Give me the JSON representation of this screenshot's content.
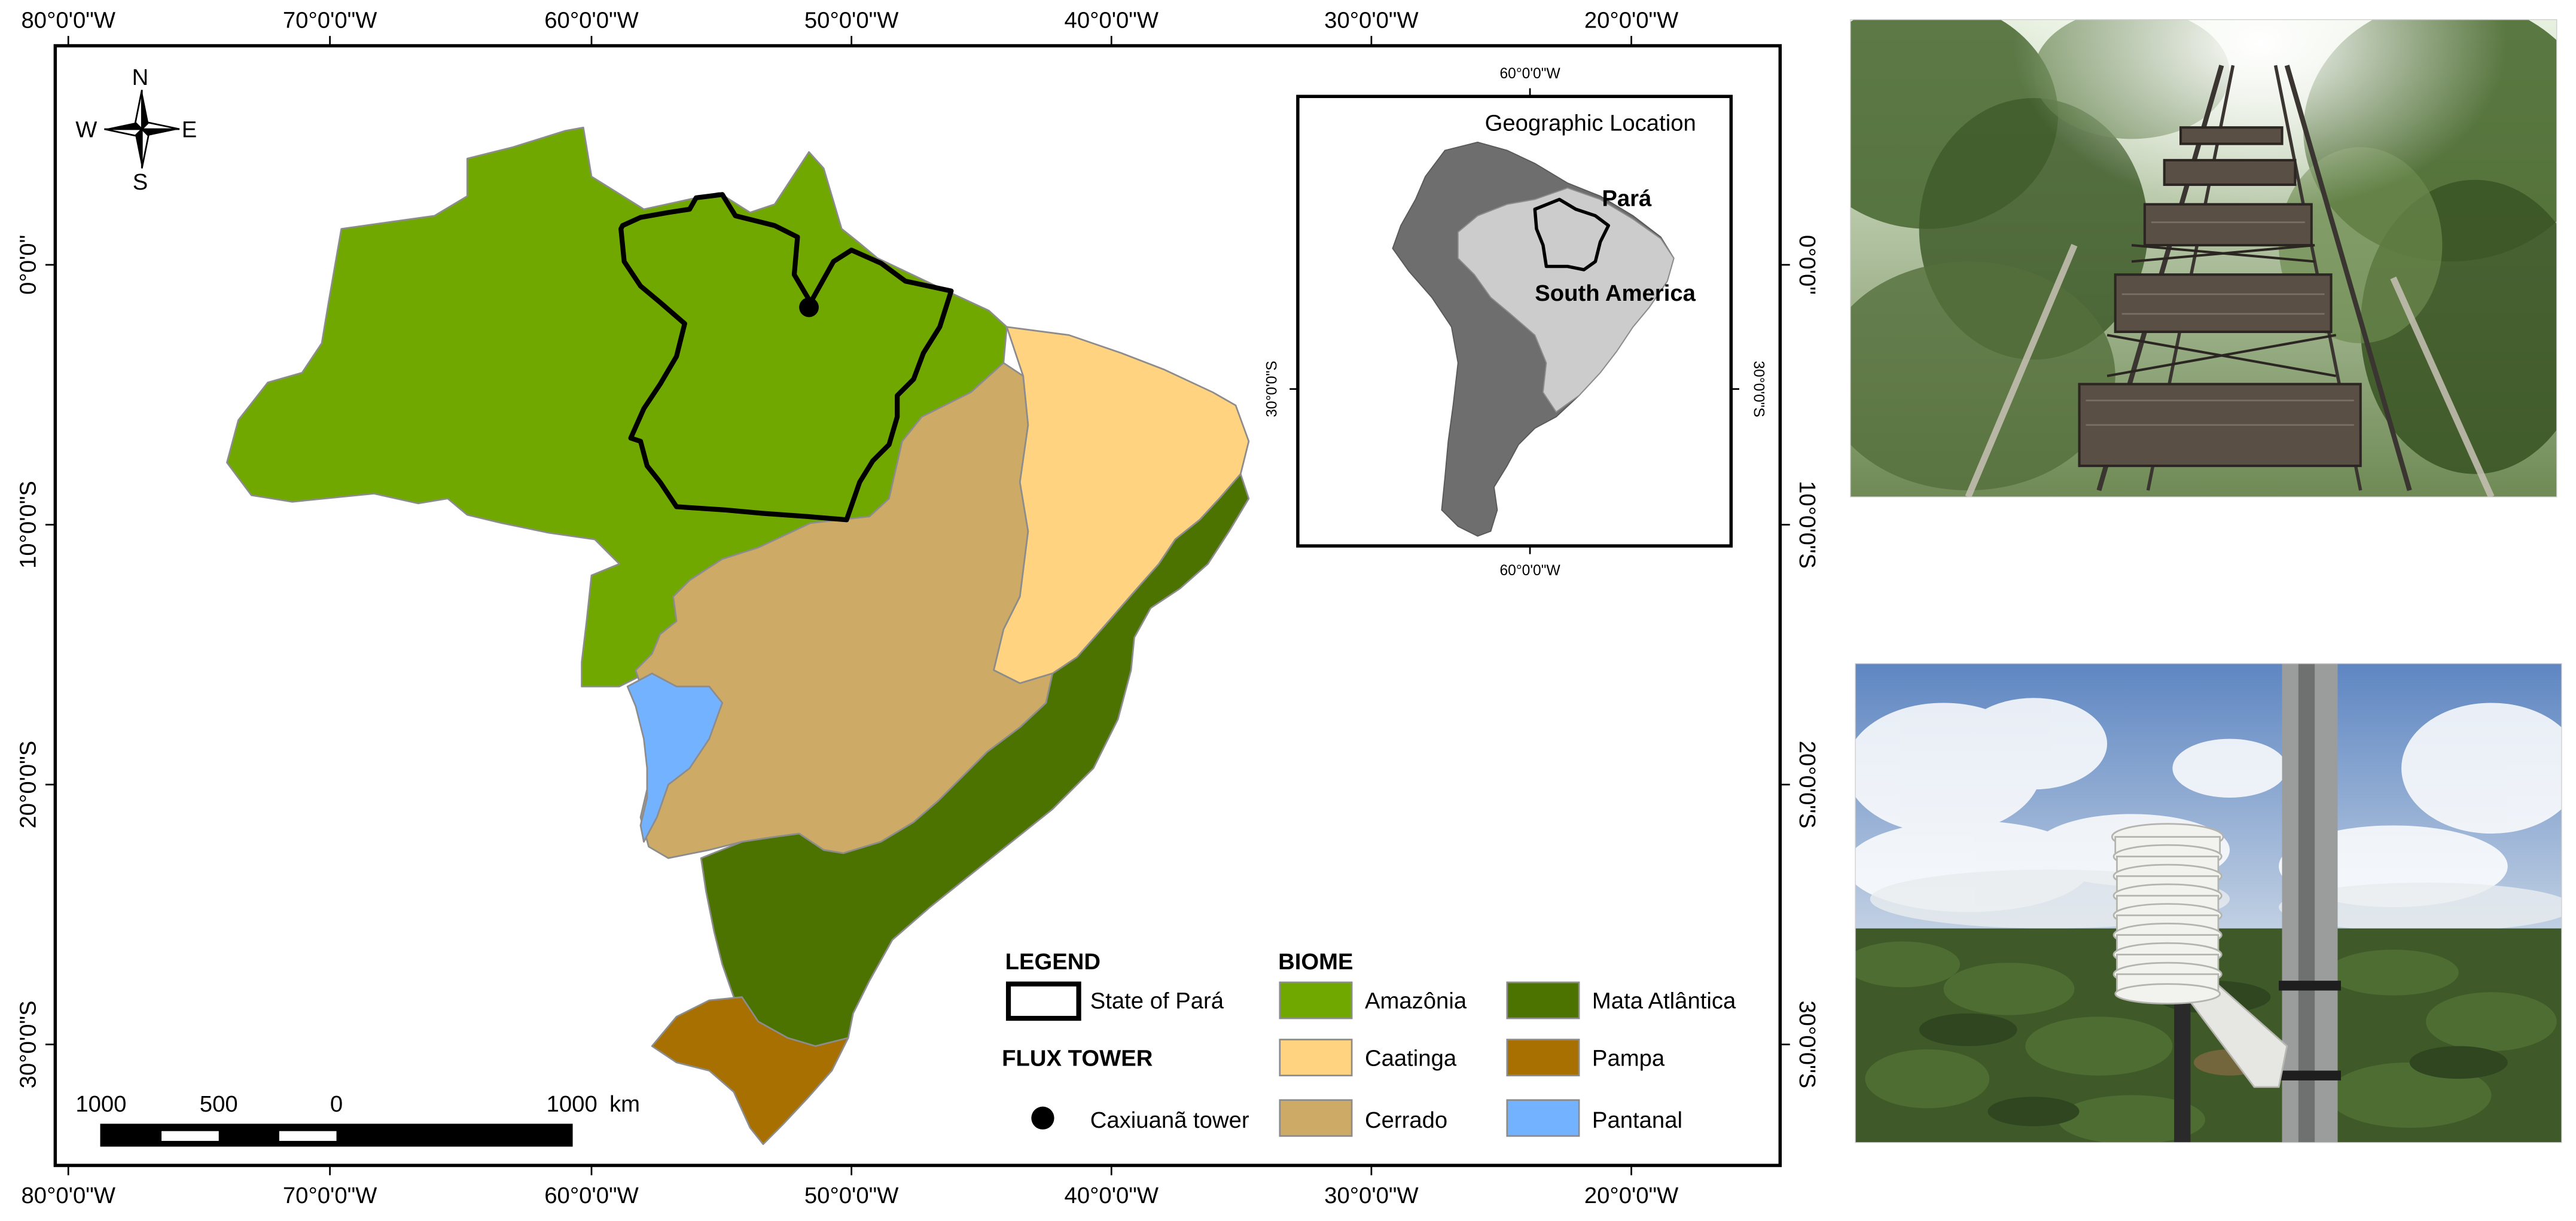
{
  "map": {
    "grid_labels": {
      "top": [
        "80°0'0\"W",
        "70°0'0\"W",
        "60°0'0\"W",
        "50°0'0\"W",
        "40°0'0\"W",
        "30°0'0\"W",
        "20°0'0\"W"
      ],
      "bottom": [
        "80°0'0\"W",
        "70°0'0\"W",
        "60°0'0\"W",
        "50°0'0\"W",
        "40°0'0\"W",
        "30°0'0\"W",
        "20°0'0\"W"
      ],
      "left": [
        "0°0'0\"",
        "10°0'0\"S",
        "20°0'0\"S",
        "30°0'0\"S"
      ],
      "right": [
        "0°0'0\"",
        "10°0'0\"S",
        "20°0'0\"S",
        "30°0'0\"S"
      ]
    },
    "north_arrow": {
      "n": "N",
      "s": "S",
      "e": "E",
      "w": "W"
    },
    "scale_bar": {
      "labels": [
        "1000",
        "500",
        "0",
        "1000"
      ],
      "unit": "km"
    },
    "legend": {
      "title": "LEGEND",
      "state_label": "State of Pará",
      "flux_title": "FLUX TOWER",
      "tower_label": "Caxiuanã tower",
      "biome_title": "BIOME",
      "biomes": [
        {
          "name": "Amazônia",
          "color": "#70a800"
        },
        {
          "name": "Caatinga",
          "color": "#ffd37f"
        },
        {
          "name": "Cerrado",
          "color": "#cdaa66"
        },
        {
          "name": "Mata Atlântica",
          "color": "#4c7300"
        },
        {
          "name": "Pampa",
          "color": "#a87000"
        },
        {
          "name": "Pantanal",
          "color": "#73b2ff"
        }
      ]
    },
    "inset": {
      "title": "Geographic Location",
      "label_para": "Pará",
      "label_sa": "South America",
      "top_label": "60°0'0\"W",
      "bottom_label": "60°0'0\"W",
      "left_label": "30°0'0\"S",
      "right_label": "30°0'0\"S"
    }
  },
  "photos": [
    {
      "icon": "tower-canopy-photo"
    },
    {
      "icon": "sensor-canopy-photo"
    }
  ]
}
